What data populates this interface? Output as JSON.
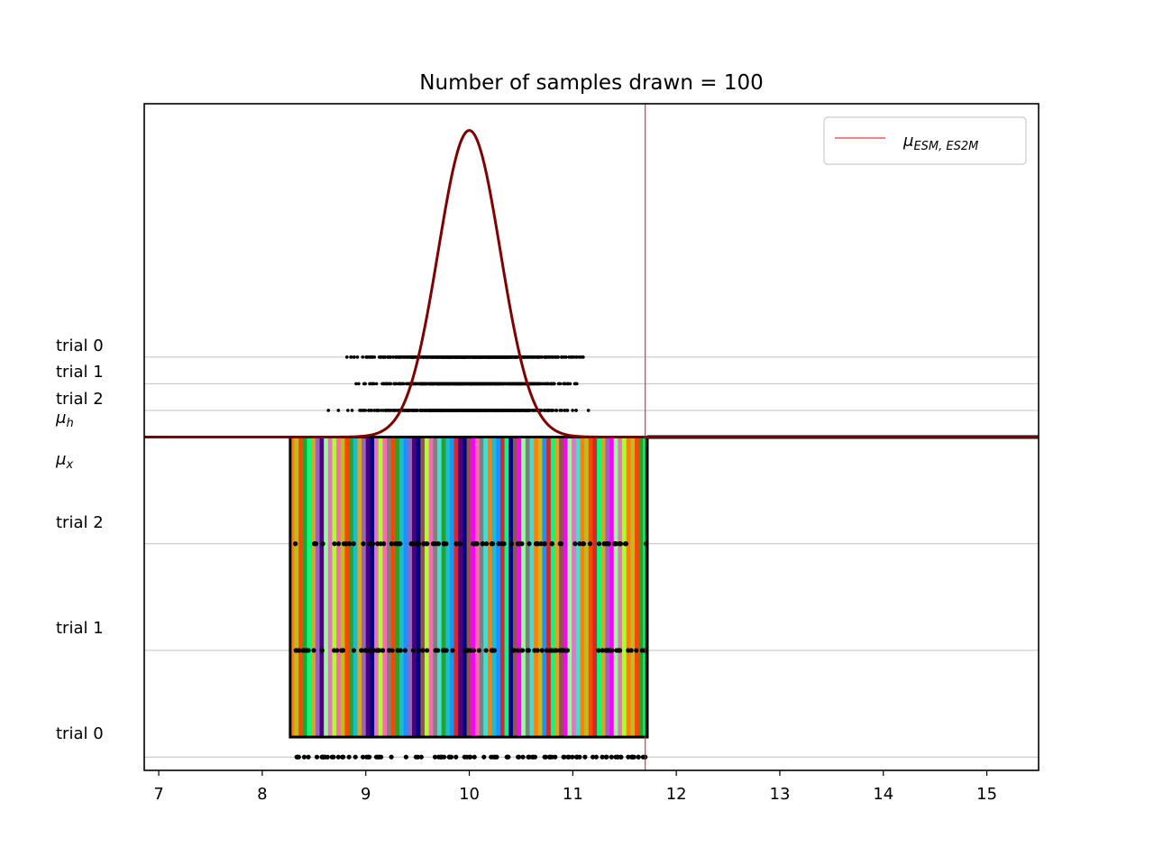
{
  "chart_data": {
    "type": "scatter",
    "title": "Number of samples drawn = 100",
    "xlabel": "",
    "ylabel": "",
    "xlim": [
      6.86,
      15.5
    ],
    "x_ticks": [
      "7",
      "8",
      "9",
      "10",
      "11",
      "12",
      "13",
      "14",
      "15"
    ],
    "x_tick_values": [
      7,
      8,
      9,
      10,
      11,
      12,
      13,
      14,
      15
    ],
    "grid": false,
    "legend": {
      "placement": "top-right",
      "entries": [
        {
          "label": "μ",
          "subscript": "ESM, ES2M",
          "color": "#ff0000"
        }
      ]
    },
    "vertical_line": {
      "x": 11.7,
      "color": "#ff0000"
    },
    "baseline_level": 0.5,
    "gaussian": {
      "mean": 10.0,
      "sd": 0.3,
      "peak_level": 0.96,
      "baseline_level": 0.5,
      "x_range": [
        6.86,
        15.5
      ],
      "color": "#800000"
    },
    "upper_rows": [
      {
        "label": "trial 0",
        "level": 0.62,
        "x_min": 8.6,
        "x_max": 11.22
      },
      {
        "label": "trial 1",
        "level": 0.58,
        "x_min": 8.78,
        "x_max": 11.26
      },
      {
        "label": "trial 2",
        "level": 0.54,
        "x_min": 8.45,
        "x_max": 11.3
      }
    ],
    "upper_labels": [
      "trial 0",
      "trial 1",
      "trial 2",
      "μ",
      "h"
    ],
    "lower_labels": [
      "μ",
      "x",
      "trial 2",
      "trial 1",
      "trial 0"
    ],
    "lower_rows": [
      {
        "label": "trial 2",
        "level": 0.34
      },
      {
        "label": "trial 1",
        "level": 0.18
      },
      {
        "label": "trial 0",
        "level": 0.02
      }
    ],
    "stripe_block": {
      "x_min": 8.27,
      "x_max": 11.72,
      "top_level": 0.5,
      "bottom_level": 0.05,
      "colors": [
        "#ff7f0e",
        "#2ca02c",
        "#d62728",
        "#9467bd",
        "#8c564b",
        "#e377c2",
        "#7f7f7f",
        "#bcbd22",
        "#17becf",
        "#00ff7f",
        "#4b0082",
        "#ff00ff",
        "#adff2f",
        "#40e0d0",
        "#ff4500",
        "#1e90ff",
        "#daa520",
        "#000080",
        "#98fb98",
        "#ff69b4"
      ]
    },
    "sample_count": 100
  }
}
